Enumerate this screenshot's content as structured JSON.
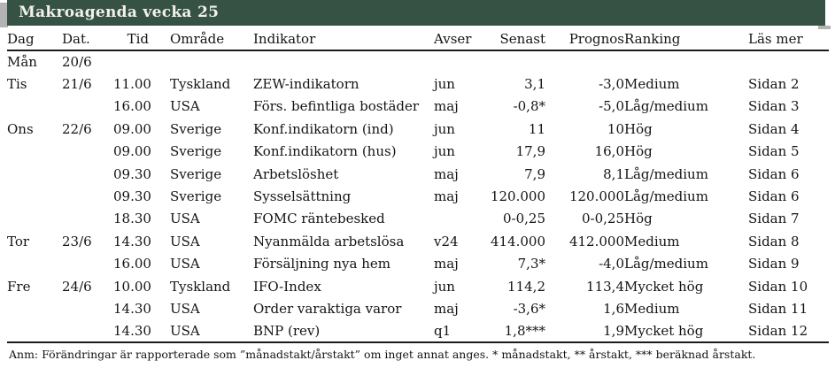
{
  "title": "Makroagenda vecka 25",
  "table": {
    "columns": [
      "Dag",
      "Dat.",
      "Tid",
      "Område",
      "Indikator",
      "Avser",
      "Senast",
      "Prognos",
      "Ranking",
      "Läs mer"
    ],
    "rows": [
      [
        "Mån",
        "20/6",
        "",
        "",
        "",
        "",
        "",
        "",
        "",
        ""
      ],
      [
        "Tis",
        "21/6",
        "11.00",
        "Tyskland",
        "ZEW-indikatorn",
        "jun",
        "3,1",
        "-3,0",
        "Medium",
        "Sidan 2"
      ],
      [
        "",
        "",
        "16.00",
        "USA",
        "Förs. befintliga bostäder",
        "maj",
        "-0,8*",
        "-5,0",
        "Låg/medium",
        "Sidan 3"
      ],
      [
        "Ons",
        "22/6",
        "09.00",
        "Sverige",
        "Konf.indikatorn (ind)",
        "jun",
        "11",
        "10",
        "Hög",
        "Sidan 4"
      ],
      [
        "",
        "",
        "09.00",
        "Sverige",
        "Konf.indikatorn (hus)",
        "jun",
        "17,9",
        "16,0",
        "Hög",
        "Sidan 5"
      ],
      [
        "",
        "",
        "09.30",
        "Sverige",
        "Arbetslöshet",
        "maj",
        "7,9",
        "8,1",
        "Låg/medium",
        "Sidan 6"
      ],
      [
        "",
        "",
        "09.30",
        "Sverige",
        "Sysselsättning",
        "maj",
        "120.000",
        "120.000",
        "Låg/medium",
        "Sidan 6"
      ],
      [
        "",
        "",
        "18.30",
        "USA",
        "FOMC räntebesked",
        "",
        "0-0,25",
        "0-0,25",
        "Hög",
        "Sidan 7"
      ],
      [
        "Tor",
        "23/6",
        "14.30",
        "USA",
        "Nyanmälda arbetslösa",
        "v24",
        "414.000",
        "412.000",
        "Medium",
        "Sidan 8"
      ],
      [
        "",
        "",
        "16.00",
        "USA",
        "Försäljning nya hem",
        "maj",
        "7,3*",
        "-4,0",
        "Låg/medium",
        "Sidan 9"
      ],
      [
        "Fre",
        "24/6",
        "10.00",
        "Tyskland",
        "IFO-Index",
        "jun",
        "114,2",
        "113,4",
        "Mycket hög",
        "Sidan 10"
      ],
      [
        "",
        "",
        "14.30",
        "USA",
        "Order varaktiga varor",
        "maj",
        "-3,6*",
        "1,6",
        "Medium",
        "Sidan 11"
      ],
      [
        "",
        "",
        "14.30",
        "USA",
        "BNP (rev)",
        "q1",
        "1,8***",
        "1,9",
        "Mycket hög",
        "Sidan 12"
      ]
    ]
  },
  "footnote": "Anm: Förändringar är rapporterade som ”månadstakt/årstakt” om inget annat anges. * månadstakt, ** årstakt, *** beräknad årstakt.",
  "colors": {
    "header_green": "#365244",
    "shadow_gray": "#b3b3b3",
    "title_text": "#f2f1ec",
    "text": "#141414"
  }
}
